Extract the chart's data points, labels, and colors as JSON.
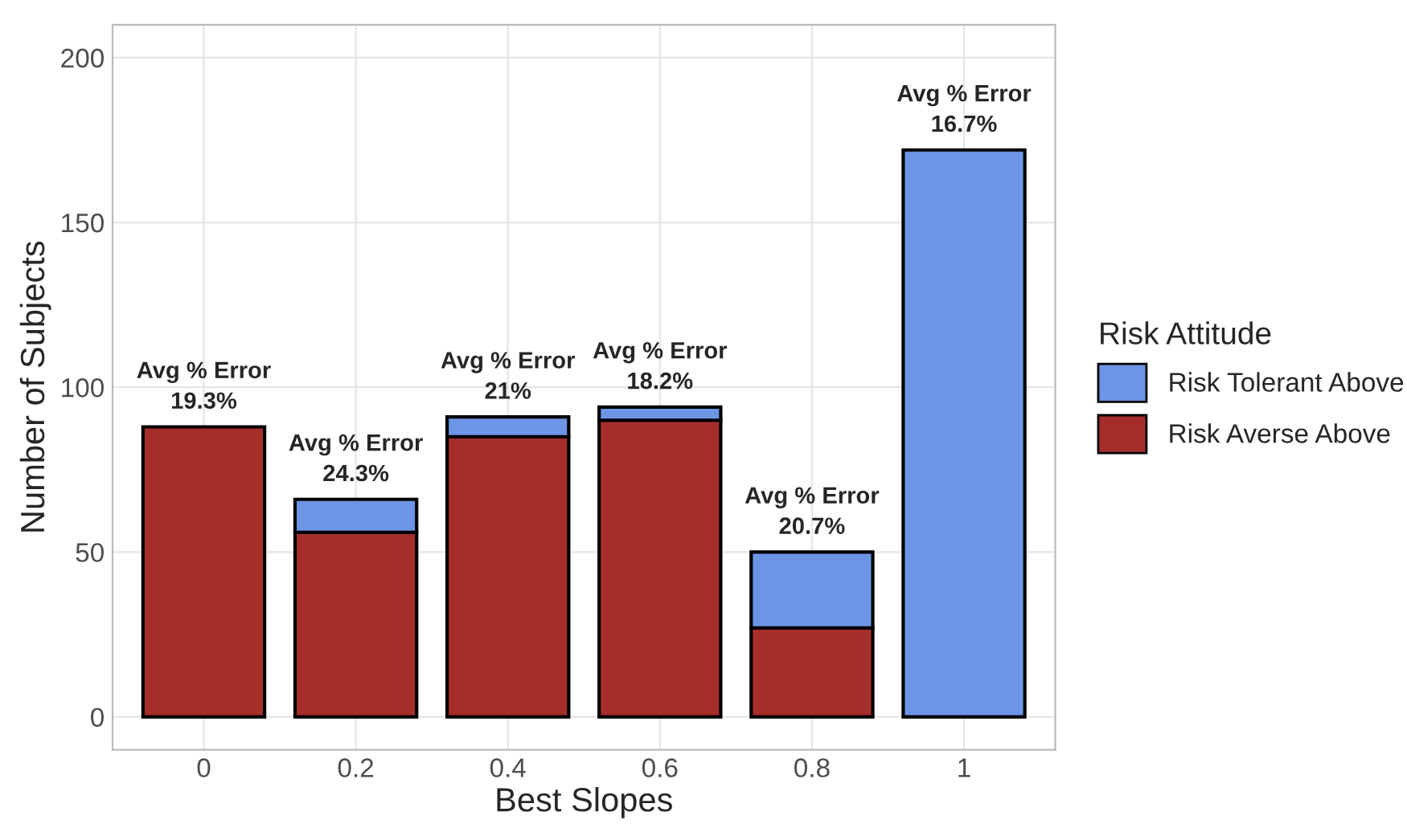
{
  "chart_data": {
    "type": "bar",
    "stacked": true,
    "xlabel": "Best Slopes",
    "ylabel": "Number of Subjects",
    "legend_title": "Risk Attitude",
    "legend": "right",
    "grid": true,
    "categories": [
      "0",
      "0.2",
      "0.4",
      "0.6",
      "0.8",
      "1"
    ],
    "series": [
      {
        "name": "Risk Averse Above",
        "color": "#a52e2b",
        "values": [
          88,
          56,
          85,
          90,
          27,
          null
        ]
      },
      {
        "name": "Risk Tolerant Above",
        "color": "#6d95e6",
        "values": [
          null,
          10,
          6,
          4,
          23,
          172
        ]
      }
    ],
    "ylim": [
      -10,
      210
    ],
    "yticks": [
      0,
      50,
      100,
      150,
      200
    ],
    "annotations": [
      {
        "text": "Avg % Error\n19.3%",
        "x": "0",
        "y": 88
      },
      {
        "text": "Avg % Error\n24.3%",
        "x": "0.2",
        "y": 66
      },
      {
        "text": "Avg % Error\n21%",
        "x": "0.4",
        "y": 91
      },
      {
        "text": "Avg % Error\n18.2%",
        "x": "0.6",
        "y": 94
      },
      {
        "text": "Avg % Error\n20.7%",
        "x": "0.8",
        "y": 50
      },
      {
        "text": "Avg % Error\n16.7%",
        "x": "1",
        "y": 172
      }
    ]
  }
}
